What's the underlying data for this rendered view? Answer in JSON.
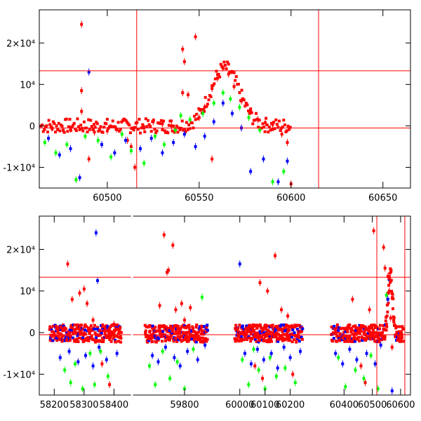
{
  "chart_data": [
    {
      "type": "scatter",
      "title": "",
      "xlabel": "",
      "ylabel": "",
      "xlim": [
        60463,
        60665
      ],
      "ylim": [
        -15000,
        28000
      ],
      "xticks": [
        {
          "value": 60500,
          "label": "60500"
        },
        {
          "value": 60550,
          "label": "60550"
        },
        {
          "value": 60600,
          "label": "60600"
        },
        {
          "value": 60650,
          "label": "60650"
        }
      ],
      "yticks": [
        {
          "value": -10000,
          "label": "-1×10⁴"
        },
        {
          "value": 0,
          "label": "0"
        },
        {
          "value": 10000,
          "label": "10⁴"
        },
        {
          "value": 20000,
          "label": "2×10⁴"
        }
      ],
      "reference_lines": {
        "horizontal": [
          13300,
          -500
        ],
        "vertical": [
          60516,
          60615
        ]
      },
      "colors": {
        "r": "#ff0000",
        "g": "#00ff00",
        "b": "#0000ff",
        "ref": "#ff0000"
      },
      "series": [
        {
          "color": "r",
          "points": [
            [
              60486,
              24500
            ],
            [
              60486,
              8500
            ],
            [
              60486,
              3500
            ],
            [
              60490,
              -8000
            ],
            [
              60470,
              -500
            ],
            [
              60476,
              -1000
            ],
            [
              60480,
              -800
            ],
            [
              60493,
              -1500
            ],
            [
              60500,
              -1200
            ],
            [
              60505,
              -800
            ],
            [
              60511,
              -3500
            ],
            [
              60513,
              -5000
            ],
            [
              60515,
              -10000
            ],
            [
              60520,
              -500
            ],
            [
              60525,
              1000
            ],
            [
              60530,
              500
            ],
            [
              60535,
              0
            ],
            [
              60541,
              18500
            ],
            [
              60542,
              15500
            ],
            [
              60541,
              8000
            ],
            [
              60544,
              7500
            ],
            [
              60548,
              21500
            ],
            [
              60550,
              2000
            ],
            [
              60553,
              4500
            ],
            [
              60557,
              9000
            ],
            [
              60560,
              11500
            ],
            [
              60563,
              14000
            ],
            [
              60566,
              12500
            ],
            [
              60569,
              9500
            ],
            [
              60573,
              6000
            ],
            [
              60578,
              3500
            ],
            [
              60582,
              1500
            ],
            [
              60586,
              800
            ],
            [
              60590,
              300
            ],
            [
              60595,
              -2000
            ],
            [
              60598,
              -4000
            ],
            [
              60600,
              -14000
            ],
            [
              60557,
              -8000
            ]
          ]
        },
        {
          "color": "g",
          "points": [
            [
              60466,
              -4000
            ],
            [
              60472,
              -6500
            ],
            [
              60478,
              -4500
            ],
            [
              60483,
              -13000
            ],
            [
              60488,
              -2500
            ],
            [
              60495,
              -3500
            ],
            [
              60502,
              -7500
            ],
            [
              60508,
              -2000
            ],
            [
              60513,
              -6000
            ],
            [
              60520,
              -9000
            ],
            [
              60526,
              -2500
            ],
            [
              60531,
              -4500
            ],
            [
              60537,
              -1000
            ],
            [
              60540,
              2500
            ],
            [
              60545,
              1500
            ],
            [
              60552,
              3000
            ],
            [
              60558,
              5500
            ],
            [
              60563,
              8000
            ],
            [
              60567,
              6500
            ],
            [
              60572,
              4500
            ],
            [
              60577,
              2000
            ],
            [
              60583,
              -1000
            ],
            [
              60590,
              -13500
            ],
            [
              60596,
              -11000
            ]
          ]
        },
        {
          "color": "b",
          "points": [
            [
              60468,
              -3000
            ],
            [
              60474,
              -7000
            ],
            [
              60480,
              -5500
            ],
            [
              60485,
              -12500
            ],
            [
              60490,
              13000
            ],
            [
              60497,
              -4500
            ],
            [
              60504,
              -6500
            ],
            [
              60510,
              -3500
            ],
            [
              60518,
              -5500
            ],
            [
              60524,
              -3000
            ],
            [
              60530,
              -6500
            ],
            [
              60536,
              -4000
            ],
            [
              60542,
              -2000
            ],
            [
              60548,
              -5000
            ],
            [
              60553,
              -2500
            ],
            [
              60558,
              1000
            ],
            [
              60563,
              5500
            ],
            [
              60568,
              3000
            ],
            [
              60573,
              -500
            ],
            [
              60578,
              -11000
            ],
            [
              60585,
              -8000
            ],
            [
              60593,
              -13500
            ],
            [
              60598,
              -8500
            ]
          ]
        }
      ]
    },
    {
      "type": "scatter",
      "title": "",
      "xlabel": "",
      "ylabel": "",
      "segments": [
        {
          "xlim": [
            58150,
            58460
          ],
          "xticks": [
            {
              "value": 58200,
              "label": "58200"
            },
            {
              "value": 58300,
              "label": "58300"
            },
            {
              "value": 58400,
              "label": "58400"
            }
          ]
        },
        {
          "xlim": [
            59620,
            59920
          ],
          "xticks": [
            {
              "value": 59800,
              "label": "59800"
            }
          ]
        },
        {
          "xlim": [
            59920,
            60290
          ],
          "xticks": [
            {
              "value": 60000,
              "label": "60000"
            },
            {
              "value": 60100,
              "label": "60100"
            },
            {
              "value": 60200,
              "label": "60200"
            }
          ]
        },
        {
          "xlim": [
            60290,
            60635
          ],
          "xticks": [
            {
              "value": 60400,
              "label": "60400"
            },
            {
              "value": 60500,
              "label": "60500"
            },
            {
              "value": 60600,
              "label": "60600"
            }
          ]
        }
      ],
      "ylim": [
        -15000,
        28000
      ],
      "yticks": [
        {
          "value": -10000,
          "label": "-1×10⁴"
        },
        {
          "value": 0,
          "label": "0"
        },
        {
          "value": 10000,
          "label": "10⁴"
        },
        {
          "value": 20000,
          "label": "2×10⁴"
        }
      ],
      "reference_lines": {
        "horizontal": [
          13300,
          -500
        ],
        "vertical": [
          60516,
          60615
        ]
      },
      "observing_seasons": [
        [
          58185,
          58425
        ],
        [
          59665,
          59880
        ],
        [
          59980,
          60250
        ],
        [
          60355,
          60610
        ]
      ],
      "series": [
        {
          "color": "r",
          "points": [
            [
              58245,
              16500
            ],
            [
              58260,
              8000
            ],
            [
              58285,
              9500
            ],
            [
              58300,
              10500
            ],
            [
              58310,
              7000
            ],
            [
              58330,
              3000
            ],
            [
              58360,
              -7500
            ],
            [
              58385,
              -12500
            ],
            [
              58400,
              2000
            ],
            [
              59730,
              23500
            ],
            [
              59740,
              14500
            ],
            [
              59745,
              15000
            ],
            [
              59760,
              21000
            ],
            [
              59715,
              6500
            ],
            [
              59770,
              5500
            ],
            [
              59790,
              7000
            ],
            [
              59800,
              3000
            ],
            [
              59820,
              6000
            ],
            [
              60060,
              -8000
            ],
            [
              60080,
              12000
            ],
            [
              60090,
              -11000
            ],
            [
              60110,
              10000
            ],
            [
              60140,
              18500
            ],
            [
              60165,
              5500
            ],
            [
              60190,
              4000
            ],
            [
              60210,
              -10000
            ],
            [
              60430,
              8000
            ],
            [
              60460,
              -8000
            ],
            [
              60475,
              -12000
            ],
            [
              60490,
              5500
            ],
            [
              60505,
              24500
            ],
            [
              60540,
              20500
            ],
            [
              60545,
              15500
            ],
            [
              60555,
              13500
            ],
            [
              60560,
              10000
            ],
            [
              60565,
              3500
            ],
            [
              60570,
              -3500
            ]
          ]
        },
        {
          "color": "g",
          "points": [
            [
              58235,
              -9000
            ],
            [
              58255,
              -12000
            ],
            [
              58270,
              -7500
            ],
            [
              58295,
              -13500
            ],
            [
              58320,
              -5000
            ],
            [
              58335,
              -12500
            ],
            [
              58355,
              -4500
            ],
            [
              58380,
              -10500
            ],
            [
              59680,
              -8000
            ],
            [
              59700,
              -12500
            ],
            [
              59725,
              -4500
            ],
            [
              59750,
              -11000
            ],
            [
              59775,
              -7000
            ],
            [
              59800,
              -13500
            ],
            [
              59830,
              -4000
            ],
            [
              59860,
              8500
            ],
            [
              60010,
              -6500
            ],
            [
              60035,
              -12500
            ],
            [
              60055,
              -4000
            ],
            [
              60075,
              -9000
            ],
            [
              60100,
              -13500
            ],
            [
              60120,
              -6000
            ],
            [
              60145,
              -10500
            ],
            [
              60180,
              -8500
            ],
            [
              60220,
              -12000
            ],
            [
              60380,
              -6000
            ],
            [
              60405,
              -13000
            ],
            [
              60440,
              -9000
            ],
            [
              60470,
              -11000
            ],
            [
              60495,
              -5500
            ],
            [
              60520,
              -13500
            ],
            [
              60550,
              9000
            ]
          ]
        },
        {
          "color": "b",
          "points": [
            [
              58340,
              24000
            ],
            [
              58345,
              12500
            ],
            [
              58220,
              -6000
            ],
            [
              58250,
              -4500
            ],
            [
              58280,
              -7000
            ],
            [
              58305,
              -5500
            ],
            [
              58330,
              -8000
            ],
            [
              58350,
              -3500
            ],
            [
              58375,
              -6500
            ],
            [
              58410,
              -5000
            ],
            [
              59690,
              -5500
            ],
            [
              59710,
              -7000
            ],
            [
              59735,
              -3500
            ],
            [
              59765,
              -6000
            ],
            [
              59785,
              -8000
            ],
            [
              59810,
              -4500
            ],
            [
              59845,
              -6500
            ],
            [
              59870,
              -3000
            ],
            [
              60000,
              16500
            ],
            [
              60020,
              -5000
            ],
            [
              60045,
              -7500
            ],
            [
              60070,
              -4000
            ],
            [
              60095,
              -6500
            ],
            [
              60125,
              -5000
            ],
            [
              60150,
              -8500
            ],
            [
              60175,
              -3500
            ],
            [
              60200,
              -6000
            ],
            [
              60240,
              -4500
            ],
            [
              60370,
              -5000
            ],
            [
              60395,
              -7500
            ],
            [
              60420,
              -4000
            ],
            [
              60445,
              -6500
            ],
            [
              60480,
              -5000
            ],
            [
              60510,
              -7500
            ],
            [
              60530,
              -3000
            ],
            [
              60555,
              8000
            ],
            [
              60570,
              -14000
            ]
          ]
        }
      ]
    }
  ]
}
